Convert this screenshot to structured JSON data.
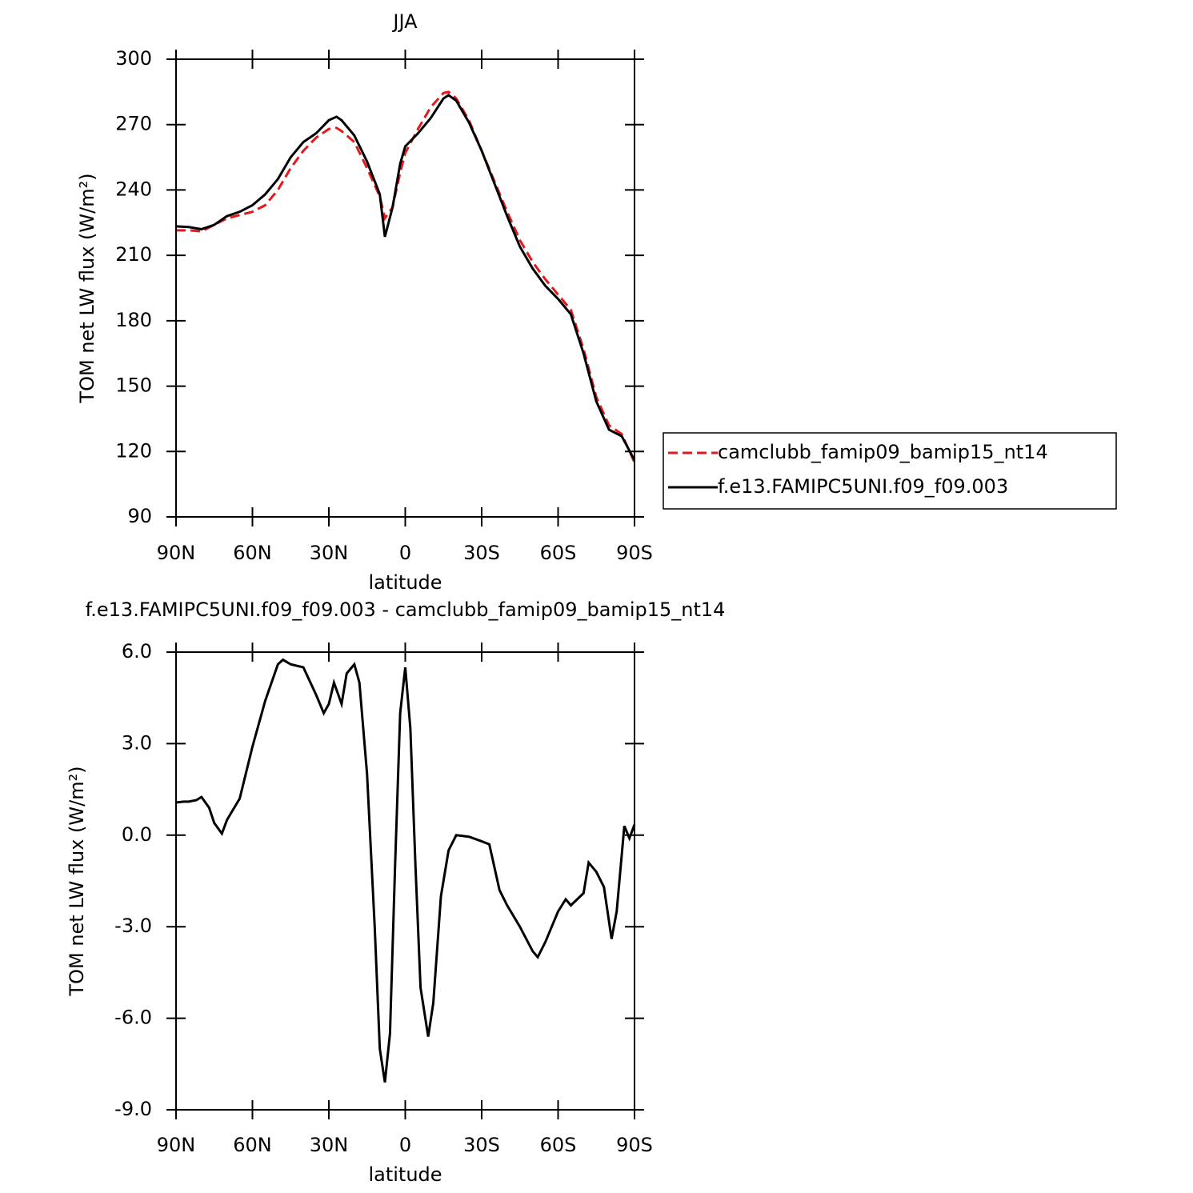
{
  "chart_data": [
    {
      "type": "line",
      "title": "JJA",
      "xlabel": "latitude",
      "ylabel": "TOM net LW flux (W/m²)",
      "x": [
        90,
        85,
        80,
        75,
        70,
        65,
        60,
        55,
        50,
        45,
        40,
        35,
        30,
        27,
        25,
        20,
        15,
        10,
        8,
        5,
        2,
        0,
        -5,
        -10,
        -15,
        -17,
        -20,
        -25,
        -30,
        -35,
        -40,
        -45,
        -50,
        -55,
        -60,
        -65,
        -70,
        -75,
        -80,
        -85,
        -90
      ],
      "series": [
        {
          "name": "camclubb_famip09_bamip15_nt14",
          "color": "#e31a1c",
          "line_style": "dashed",
          "values": [
            221.5,
            221.5,
            221,
            224,
            227,
            228.5,
            230,
            233,
            240,
            250,
            258,
            264,
            268,
            268.5,
            267,
            262,
            250,
            237,
            227,
            232,
            248,
            257,
            268,
            278,
            284.5,
            285,
            282,
            272,
            258,
            244,
            230,
            217,
            207,
            199,
            192,
            185,
            167,
            145,
            132,
            128,
            115
          ]
        },
        {
          "name": "f.e13.FAMIPC5UNI.f09_f09.003",
          "color": "#000000",
          "line_style": "solid",
          "values": [
            223.3,
            223,
            222,
            224,
            228,
            230,
            233,
            238,
            245,
            255,
            262,
            266,
            272,
            273.6,
            272,
            265,
            253,
            238,
            218.5,
            232,
            252,
            260,
            266,
            273,
            282,
            283.5,
            281,
            271,
            258,
            243,
            228,
            214,
            204,
            196,
            190,
            183,
            165,
            143,
            130,
            127,
            116
          ]
        }
      ],
      "xlim": [
        90,
        -90
      ],
      "xticks": [
        {
          "value": 90,
          "label": "90N"
        },
        {
          "value": 60,
          "label": "60N"
        },
        {
          "value": 30,
          "label": "30N"
        },
        0,
        {
          "value": -30,
          "label": "30S"
        },
        {
          "value": -60,
          "label": "60S"
        },
        {
          "value": -90,
          "label": "90S"
        }
      ],
      "ylim": [
        90,
        300
      ],
      "yticks": [
        90,
        120,
        150,
        180,
        210,
        240,
        270,
        300
      ],
      "legend": "outside-right"
    },
    {
      "type": "line",
      "title": "f.e13.FAMIPC5UNI.f09_f09.003 - camclubb_famip09_bamip15_nt14",
      "xlabel": "latitude",
      "ylabel": "TOM net LW flux (W/m²)",
      "x": [
        90,
        87,
        85,
        82,
        80,
        77,
        75,
        72,
        70,
        65,
        60,
        55,
        50,
        48,
        45,
        40,
        35,
        32,
        30,
        28,
        25,
        23,
        20,
        18,
        15,
        12,
        10,
        8,
        6,
        4,
        2,
        0,
        -2,
        -4,
        -6,
        -9,
        -11,
        -14,
        -17,
        -20,
        -25,
        -30,
        -33,
        -37,
        -40,
        -45,
        -50,
        -52,
        -55,
        -60,
        -63,
        -65,
        -70,
        -72,
        -75,
        -78,
        -81,
        -83,
        -86,
        -88,
        -90
      ],
      "values": [
        1.07,
        1.1,
        1.1,
        1.15,
        1.25,
        0.9,
        0.4,
        0.05,
        0.5,
        1.2,
        2.9,
        4.4,
        5.6,
        5.75,
        5.6,
        5.5,
        4.6,
        4.0,
        4.3,
        5.0,
        4.3,
        5.3,
        5.6,
        5.0,
        2.0,
        -3.0,
        -7.0,
        -8.1,
        -6.5,
        -1.0,
        4.0,
        5.5,
        3.5,
        -1.0,
        -5.0,
        -6.6,
        -5.5,
        -2.0,
        -0.5,
        0.0,
        -0.05,
        -0.2,
        -0.3,
        -1.8,
        -2.3,
        -3.0,
        -3.8,
        -4.0,
        -3.5,
        -2.5,
        -2.1,
        -2.3,
        -1.9,
        -0.9,
        -1.2,
        -1.7,
        -3.4,
        -2.5,
        0.3,
        -0.1,
        0.35
      ],
      "color": "#000000",
      "xlim": [
        90,
        -90
      ],
      "xticks": [
        {
          "value": 90,
          "label": "90N"
        },
        {
          "value": 60,
          "label": "60N"
        },
        {
          "value": 30,
          "label": "30N"
        },
        0,
        {
          "value": -30,
          "label": "30S"
        },
        {
          "value": -60,
          "label": "60S"
        },
        {
          "value": -90,
          "label": "90S"
        }
      ],
      "ylim": [
        -9,
        6
      ],
      "yticks": [
        {
          "value": -9,
          "label": "-9.0"
        },
        {
          "value": -6,
          "label": "-6.0"
        },
        {
          "value": -3,
          "label": "-3.0"
        },
        {
          "value": 0,
          "label": "0.0"
        },
        {
          "value": 3,
          "label": "3.0"
        },
        {
          "value": 6,
          "label": "6.0"
        }
      ]
    }
  ]
}
